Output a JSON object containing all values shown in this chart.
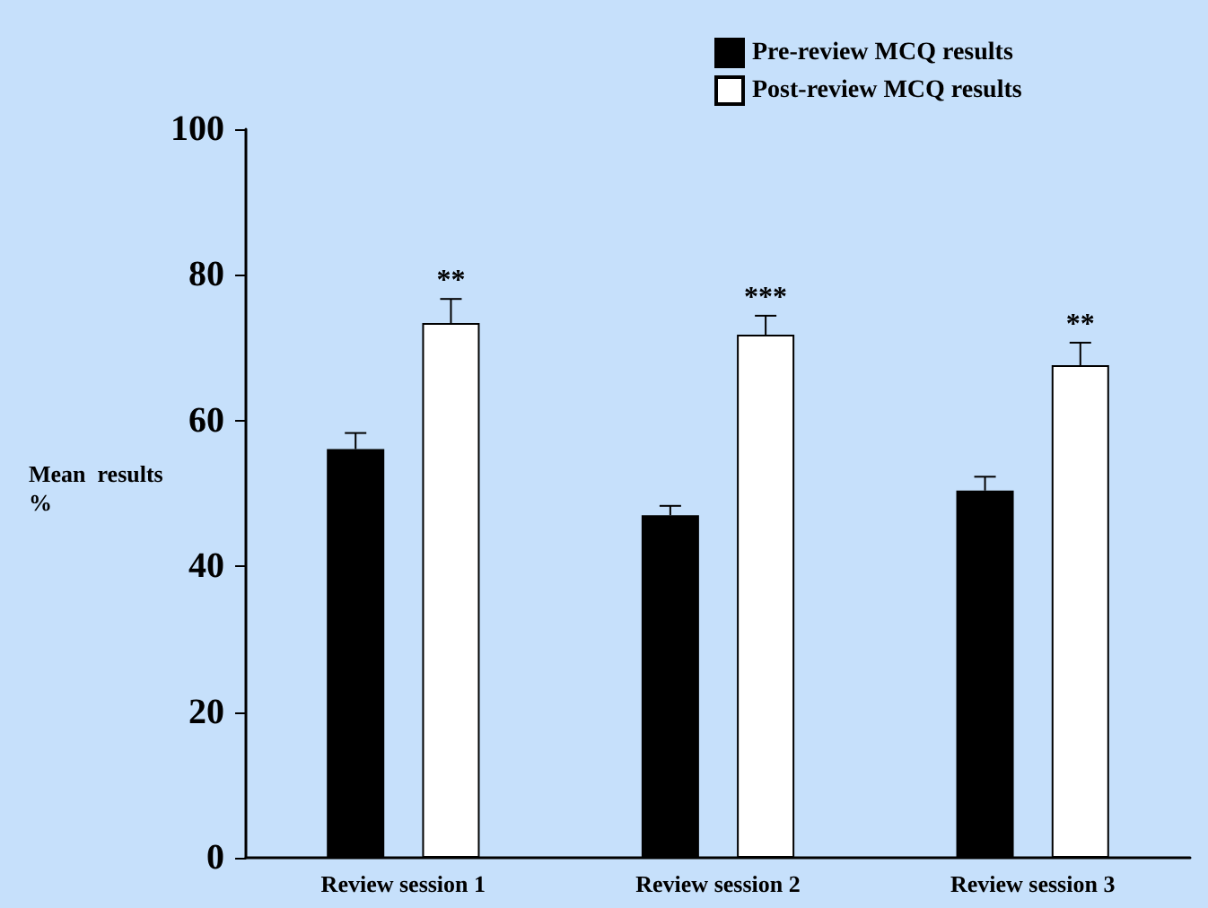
{
  "chart_data": {
    "type": "bar",
    "ylabel": "Mean  results\n%",
    "categories": [
      "Review session 1",
      "Review session 2",
      "Review session 3"
    ],
    "series": [
      {
        "name": "Pre-review MCQ results",
        "color": "#000000",
        "values": [
          56.1,
          47.0,
          50.4
        ],
        "errors": [
          2.2,
          1.3,
          1.9
        ]
      },
      {
        "name": "Post-review MCQ results",
        "color": "#ffffff",
        "values": [
          73.4,
          71.8,
          67.6
        ],
        "errors": [
          3.3,
          2.6,
          3.1
        ]
      }
    ],
    "ylim": [
      0,
      100
    ],
    "yticks": [
      0,
      20,
      40,
      60,
      80,
      100
    ],
    "grid": false,
    "legend": "top right",
    "annotations": [
      "**",
      "***",
      "**"
    ]
  }
}
